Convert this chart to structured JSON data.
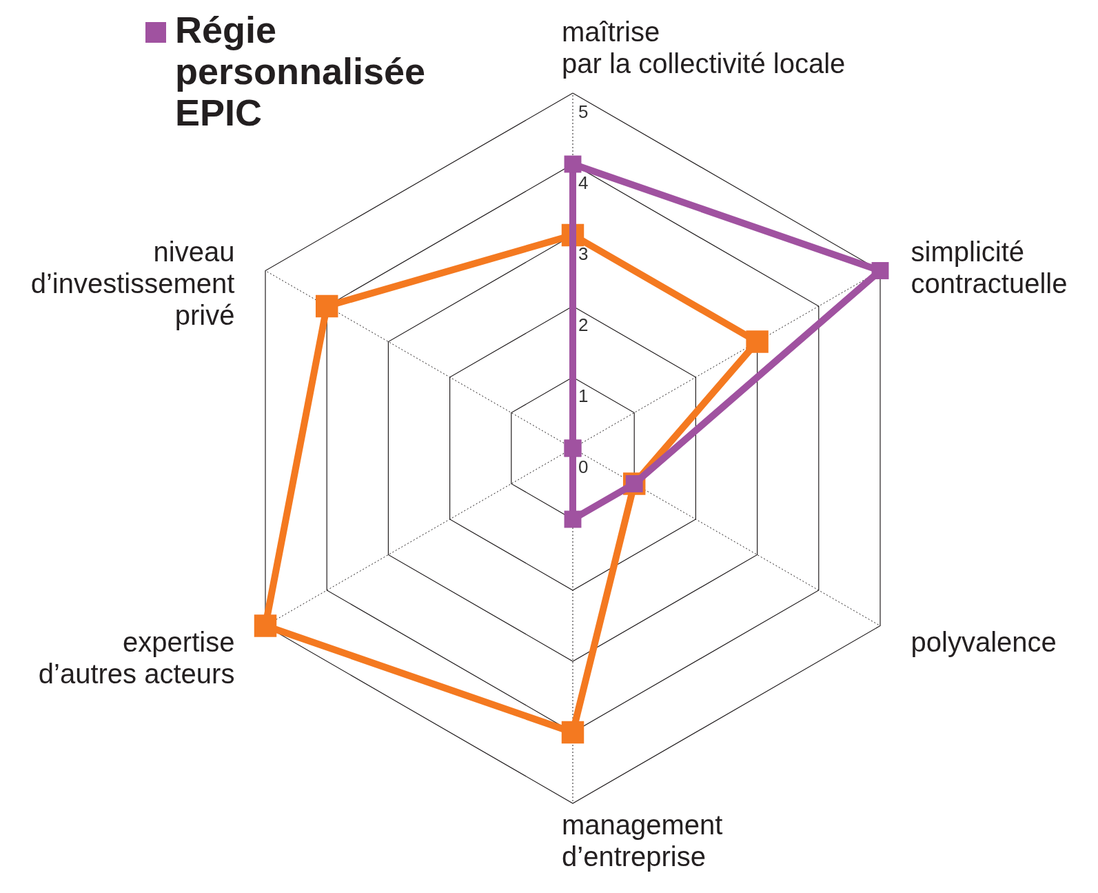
{
  "chart_data": {
    "type": "radar",
    "categories": [
      "maîtrise\npar la collectivité locale",
      "simplicité\ncontractuelle",
      "polyvalence",
      "management\nd’entreprise",
      "expertise\nd’autres acteurs",
      "niveau\nd’investissement\nprivé"
    ],
    "series": [
      {
        "color": "#f47920",
        "values": [
          3,
          3,
          1,
          4,
          5,
          4
        ]
      },
      {
        "name": "Régie personnalisée EPIC",
        "color": "#a052a0",
        "values": [
          4,
          5,
          1,
          1,
          0,
          0
        ]
      }
    ],
    "ylim": [
      0,
      5
    ],
    "yticks": [
      0,
      1,
      2,
      3,
      4,
      5
    ],
    "grid": true,
    "marker": "square",
    "line_style": "solid",
    "legend": "top left"
  }
}
